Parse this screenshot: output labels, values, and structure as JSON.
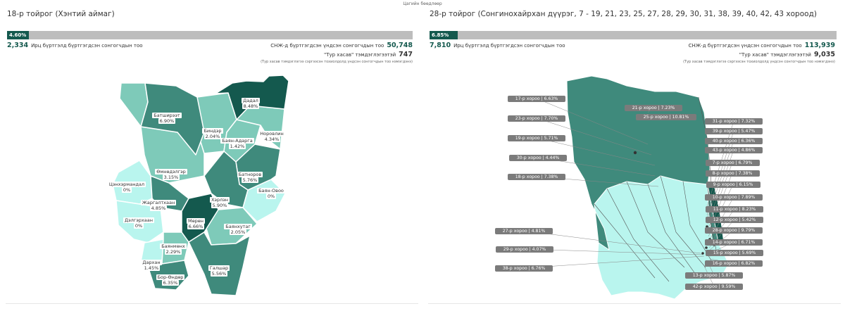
{
  "page_caption": "Цагийн бөөдлөөр",
  "colors": {
    "bar_fill": "#14594e",
    "bar_track": "#bdbdbd",
    "region_dark": "#14594e",
    "region_mid": "#3f8a7c",
    "region_light": "#7ecab9",
    "region_pale": "#b9f5ee"
  },
  "left": {
    "title": "18-р тойрог (Хэнтий аймаг)",
    "turnout_percent": 4.6,
    "turnout_label": "4.60%",
    "registered_label": "Ирц бүртгэлд бүртгэгдсэн сонгогчдын тоо",
    "registered_value": "2,334",
    "voters_label": "СНЖ-д бүртгэгдсэн үндсэн сонгогчдын тоо",
    "voters_value": "50,748",
    "special_label": "\"Тур хасав\" тэмдэглэгээтэй",
    "special_value": "747",
    "footnote": "(Тур хасав тэмдэглэгээ сэргээсэн тохиолдолд үндсэн сонгогчдын тоо нэмэгдэнэ)",
    "regions": [
      {
        "name": "Батширээт",
        "value": "6.90%"
      },
      {
        "name": "Дадал",
        "value": "8.48%"
      },
      {
        "name": "Биндэр",
        "value": "2.04%"
      },
      {
        "name": "Баян-Адарга",
        "value": "1.42%"
      },
      {
        "name": "Норовлин",
        "value": "4.34%"
      },
      {
        "name": "Өмнөдэлгэр",
        "value": "3.15%"
      },
      {
        "name": "Батноров",
        "value": "5.76%"
      },
      {
        "name": "Цэнхэрмандал",
        "value": "0%"
      },
      {
        "name": "Баян-Овоо",
        "value": "0%"
      },
      {
        "name": "Хэрлэн",
        "value": "5.90%"
      },
      {
        "name": "Жаргалтхаан",
        "value": "4.85%"
      },
      {
        "name": "Дэлгэрхаан",
        "value": "0%"
      },
      {
        "name": "Мөрөн",
        "value": "6.66%"
      },
      {
        "name": "Баянхутаг",
        "value": "2.05%"
      },
      {
        "name": "Баянмөнх",
        "value": "2.29%"
      },
      {
        "name": "Дархан",
        "value": "1.45%"
      },
      {
        "name": "Бор-Өндөр",
        "value": "6.35%"
      },
      {
        "name": "Галшар",
        "value": "5.56%"
      }
    ]
  },
  "right": {
    "title": "28-р тойрог (Сонгинохайрхан дүүрэг, 7 - 19, 21, 23, 25, 27, 28, 29, 30, 31, 38, 39, 40, 42, 43 хороод)",
    "turnout_percent": 6.85,
    "turnout_label": "6.85%",
    "registered_label": "Ирц бүртгэлд бүртгэгдсэн сонгогчдын тоо",
    "registered_value": "7,810",
    "voters_label": "СНЖ-д бүртгэгдсэн үндсэн сонгогчдын тоо",
    "voters_value": "113,939",
    "special_label": "\"Тур хасав\" тэмдэглэгээтэй",
    "special_value": "9,035",
    "footnote": "(Тур хасав тэмдэглэгээ сэргээсэн тохиолдолд үндсэн сонгогчдын тоо нэмэгдэнэ)",
    "khoroos": [
      {
        "label": "21-р хороо | 7.23%"
      },
      {
        "label": "25-р хороо | 10.81%"
      },
      {
        "label": "17-р хороо | 6.63%"
      },
      {
        "label": "23-р хороо | 7.70%"
      },
      {
        "label": "19-р хороо | 5.71%"
      },
      {
        "label": "30-р хороо | 4.44%"
      },
      {
        "label": "18-р хороо | 7.38%"
      },
      {
        "label": "27-р хороо | 4.81%"
      },
      {
        "label": "29-р хороо | 4.07%"
      },
      {
        "label": "38-р хороо | 6.76%"
      },
      {
        "label": "31-р хороо | 7.32%"
      },
      {
        "label": "39-р хороо | 5.47%"
      },
      {
        "label": "40-р хороо | 6.36%"
      },
      {
        "label": "43-р хороо | 4.86%"
      },
      {
        "label": "7-р хороо | 6.79%"
      },
      {
        "label": "8-р хороо | 7.38%"
      },
      {
        "label": "9-р хороо | 6.15%"
      },
      {
        "label": "10-р хороо | 7.89%"
      },
      {
        "label": "11-р хороо | 8.23%"
      },
      {
        "label": "12-р хороо | 5.42%"
      },
      {
        "label": "28-р хороо | 9.79%"
      },
      {
        "label": "14-р хороо | 6.71%"
      },
      {
        "label": "15-р хороо | 5.69%"
      },
      {
        "label": "16-р хороо | 6.82%"
      },
      {
        "label": "13-р хороо | 5.87%"
      },
      {
        "label": "42-р хороо | 9.59%"
      }
    ]
  }
}
